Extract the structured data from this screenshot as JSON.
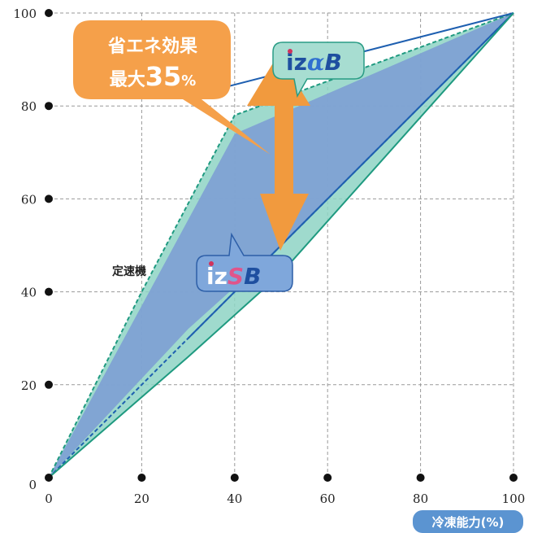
{
  "chart_data": {
    "type": "area",
    "x_ticks": [
      0,
      20,
      40,
      60,
      80,
      100
    ],
    "y_ticks": [
      0,
      20,
      40,
      60,
      80,
      100
    ],
    "xlim": [
      0,
      100
    ],
    "ylim": [
      0,
      100
    ],
    "xlabel": "冷凍能力(%)",
    "grid": true,
    "series": [
      {
        "name": "定速機",
        "x": [
          0,
          100
        ],
        "y": [
          0,
          100
        ],
        "style": "dashed"
      },
      {
        "name": "izαB",
        "x": [
          0,
          30,
          100
        ],
        "y": [
          0,
          82,
          100
        ],
        "style": "solid"
      },
      {
        "name": "izSB",
        "x": [
          0,
          30,
          100
        ],
        "y": [
          0,
          30,
          100
        ],
        "style": "solid"
      }
    ],
    "region_upper": {
      "x": [
        0,
        20,
        40,
        100
      ],
      "y": [
        0,
        40,
        78,
        100
      ]
    },
    "region_lower": {
      "x": [
        0,
        30,
        50,
        100
      ],
      "y": [
        0,
        30,
        48,
        100
      ]
    },
    "annotations": {
      "savings_line1": "省エネ効果",
      "savings_line2_prefix": "最大",
      "savings_value": "35",
      "savings_unit": "%",
      "model_a_prefix": "iz",
      "model_a_greek": "α",
      "model_a_suffix": "B",
      "model_b_prefix": "iz",
      "model_b_s": "S",
      "model_b_suffix": "B",
      "fixed_speed_label": "定速機"
    },
    "colors": {
      "teal_area": "#8ed3c4",
      "blue_area": "#7d9ed4",
      "teal_line": "#1f9a80",
      "blue_line": "#1e5fb0",
      "callout_orange": "#f5a04a",
      "arrow_orange": "#f19a3e",
      "label_badge": "#5b94d1"
    }
  }
}
